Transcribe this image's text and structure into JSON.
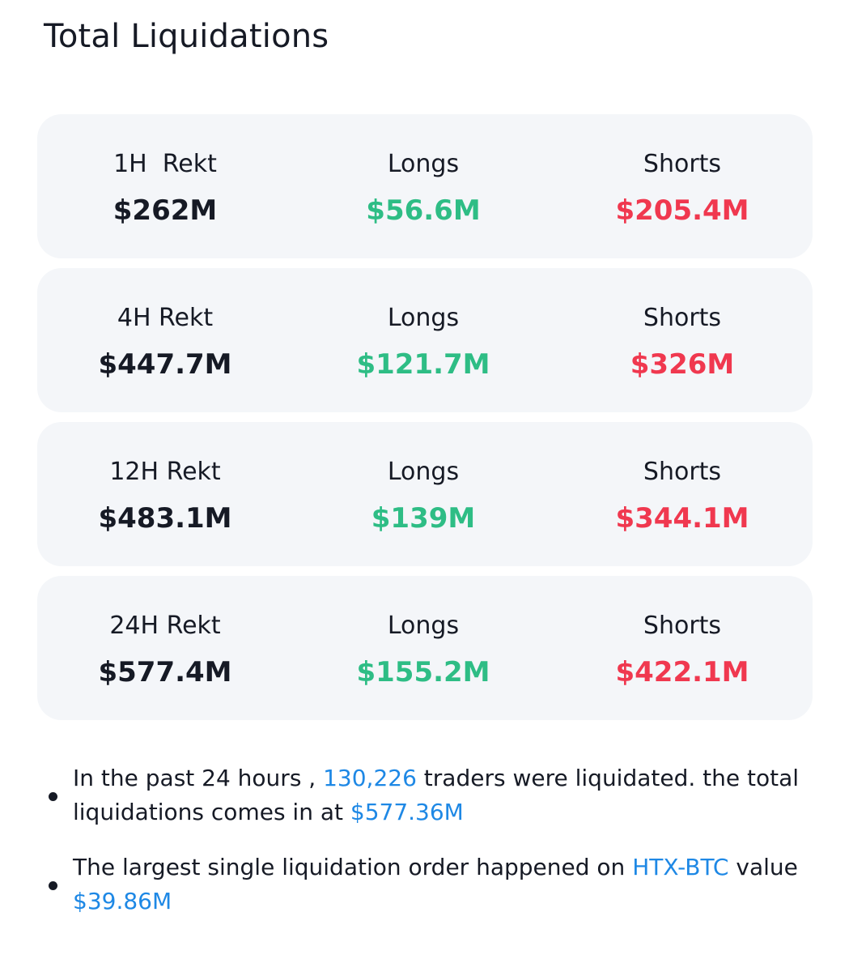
{
  "title": "Total Liquidations",
  "colors": {
    "longs": "#2ebd85",
    "shorts": "#f0384f",
    "highlight": "#1e88e5",
    "card_bg": "#f4f6f9",
    "text": "#161a25"
  },
  "cards": [
    {
      "rekt_label": "1H  Rekt",
      "rekt_value": "$262M",
      "longs_label": "Longs",
      "longs_value": "$56.6M",
      "shorts_label": "Shorts",
      "shorts_value": "$205.4M"
    },
    {
      "rekt_label": "4H Rekt",
      "rekt_value": "$447.7M",
      "longs_label": "Longs",
      "longs_value": "$121.7M",
      "shorts_label": "Shorts",
      "shorts_value": "$326M"
    },
    {
      "rekt_label": "12H Rekt",
      "rekt_value": "$483.1M",
      "longs_label": "Longs",
      "longs_value": "$139M",
      "shorts_label": "Shorts",
      "shorts_value": "$344.1M"
    },
    {
      "rekt_label": "24H Rekt",
      "rekt_value": "$577.4M",
      "longs_label": "Longs",
      "longs_value": "$155.2M",
      "shorts_label": "Shorts",
      "shorts_value": "$422.1M"
    }
  ],
  "notes": {
    "note1": {
      "text_a": "In the past 24 hours , ",
      "traders_count": "130,226",
      "text_b": " traders were liquidated. the total liquidations comes in at ",
      "total_value": "$577.36M"
    },
    "note2": {
      "text_a": "The largest single liquidation order happened on ",
      "pair": "HTX-BTC",
      "text_b": " value ",
      "value": "$39.86M"
    }
  }
}
